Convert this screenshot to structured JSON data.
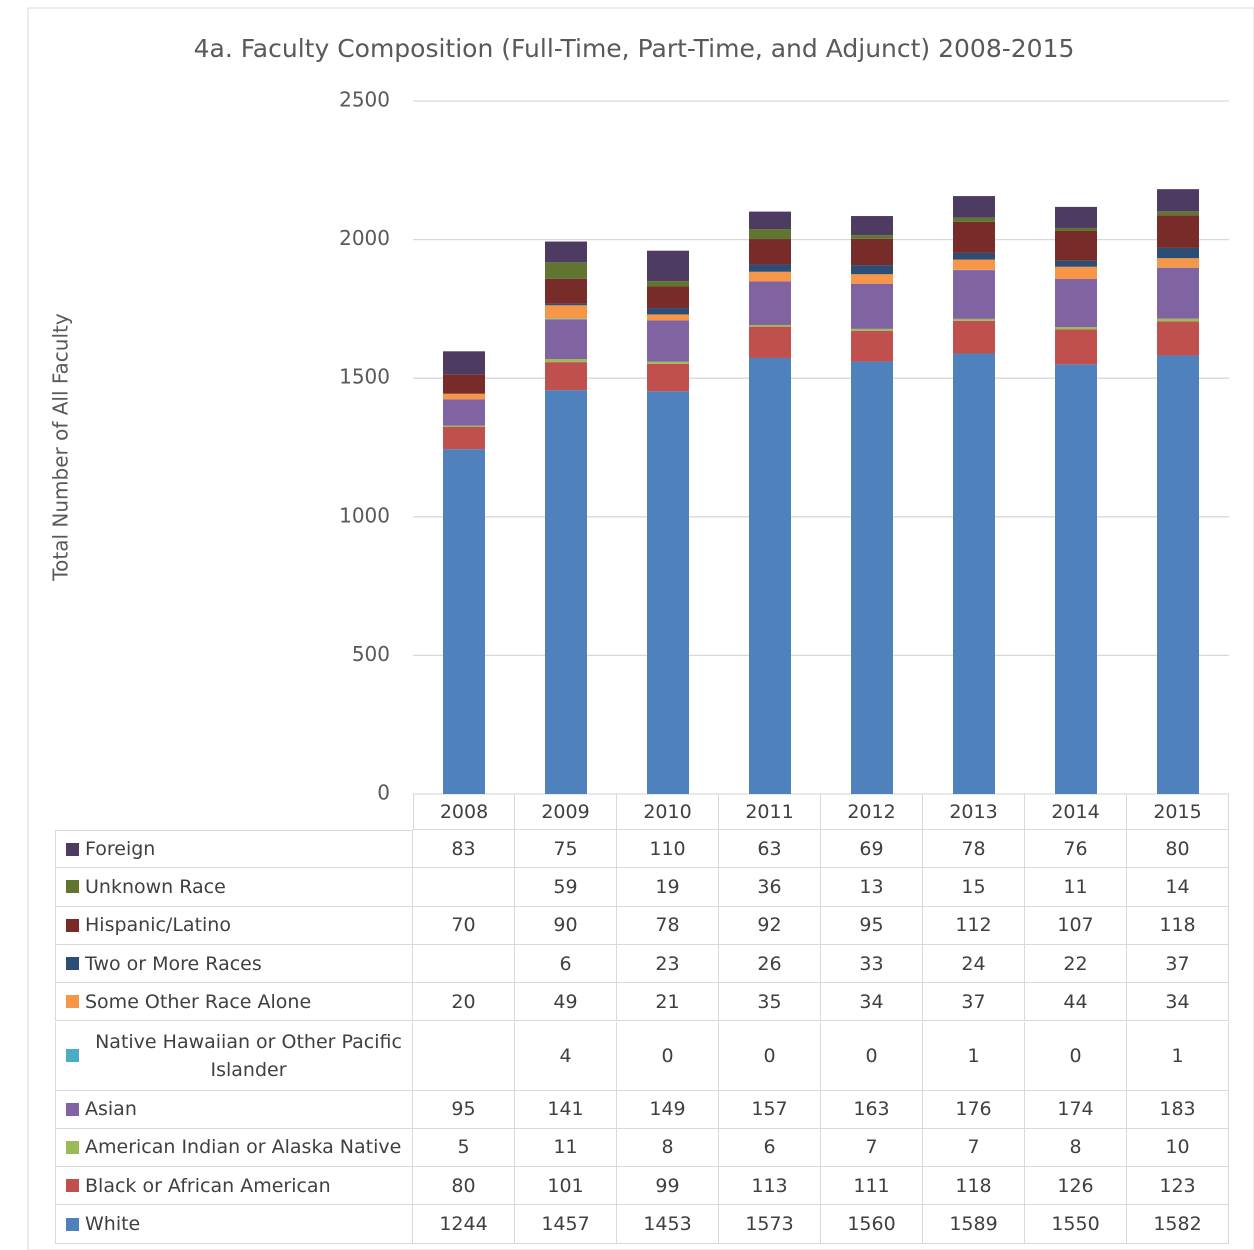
{
  "chart_data": {
    "type": "stacked_bar",
    "title": "4a. Faculty Composition (Full-Time, Part-Time, and Adjunct) 2008-2015",
    "y_label": "Total Number of All Faculty",
    "categories": [
      "2008",
      "2009",
      "2010",
      "2011",
      "2012",
      "2013",
      "2014",
      "2015"
    ],
    "ylim": [
      0,
      2500
    ],
    "yticks": [
      0,
      500,
      1000,
      1500,
      2000,
      2500
    ],
    "grid": true,
    "series": [
      {
        "name": "White",
        "color": "#4f81bd",
        "values": [
          1244,
          1457,
          1453,
          1573,
          1560,
          1589,
          1550,
          1582
        ]
      },
      {
        "name": "Black or African American",
        "color": "#c0504d",
        "values": [
          80,
          101,
          99,
          113,
          111,
          118,
          126,
          123
        ]
      },
      {
        "name": "American Indian or Alaska Native",
        "color": "#9bbb59",
        "values": [
          5,
          11,
          8,
          6,
          7,
          7,
          8,
          10
        ]
      },
      {
        "name": "Asian",
        "color": "#8064a2",
        "values": [
          95,
          141,
          149,
          157,
          163,
          176,
          174,
          183
        ]
      },
      {
        "name": "Native Hawaiian or Other Pacific Islander",
        "color": "#4bacc6",
        "values": [
          null,
          4,
          0,
          0,
          0,
          1,
          0,
          1
        ]
      },
      {
        "name": "Some Other Race Alone",
        "color": "#f79646",
        "values": [
          20,
          49,
          21,
          35,
          34,
          37,
          44,
          34
        ]
      },
      {
        "name": "Two or More Races",
        "color": "#2c4d75",
        "values": [
          null,
          6,
          23,
          26,
          33,
          24,
          22,
          37
        ]
      },
      {
        "name": "Hispanic/Latino",
        "color": "#772c2a",
        "values": [
          70,
          90,
          78,
          92,
          95,
          112,
          107,
          118
        ]
      },
      {
        "name": "Unknown Race",
        "color": "#5f7530",
        "values": [
          null,
          59,
          19,
          36,
          13,
          15,
          11,
          14
        ]
      },
      {
        "name": "Foreign",
        "color": "#4d3b62",
        "values": [
          83,
          75,
          110,
          63,
          69,
          78,
          76,
          80
        ]
      }
    ]
  }
}
